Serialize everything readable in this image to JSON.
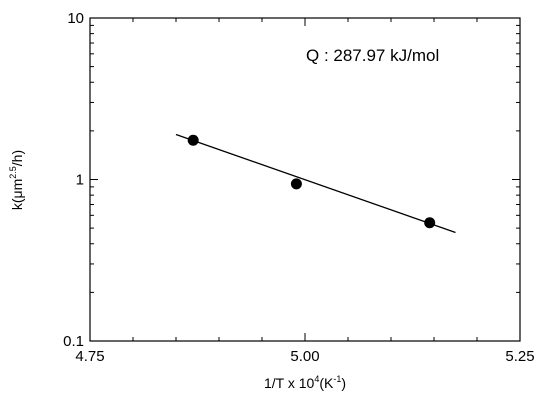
{
  "chart_data": {
    "type": "scatter",
    "xlabel": "1/T x 10",
    "xlabel_sup": "4",
    "xlabel_unit": "(K",
    "xlabel_unit_sup": "-1",
    "xlabel_end": ")",
    "ylabel": "k(μm",
    "ylabel_sup": "2.5",
    "ylabel_end": "/h)",
    "xlim": [
      4.75,
      5.25
    ],
    "ylim": [
      0.1,
      10
    ],
    "yscale": "log",
    "x_ticks": [
      4.75,
      5.0,
      5.25
    ],
    "x_tick_labels": [
      "4.75",
      "5.00",
      "5.25"
    ],
    "y_ticks": [
      0.1,
      1,
      10
    ],
    "y_tick_labels": [
      "0.1",
      "1",
      "10"
    ],
    "grid": false,
    "series": [
      {
        "x": [
          4.87,
          4.99,
          5.145
        ],
        "y": [
          1.75,
          0.94,
          0.54
        ]
      }
    ],
    "fit_line": {
      "x": [
        4.85,
        5.175
      ],
      "y": [
        1.9,
        0.47
      ]
    },
    "annotation": "Q : 287.97 kJ/mol"
  }
}
